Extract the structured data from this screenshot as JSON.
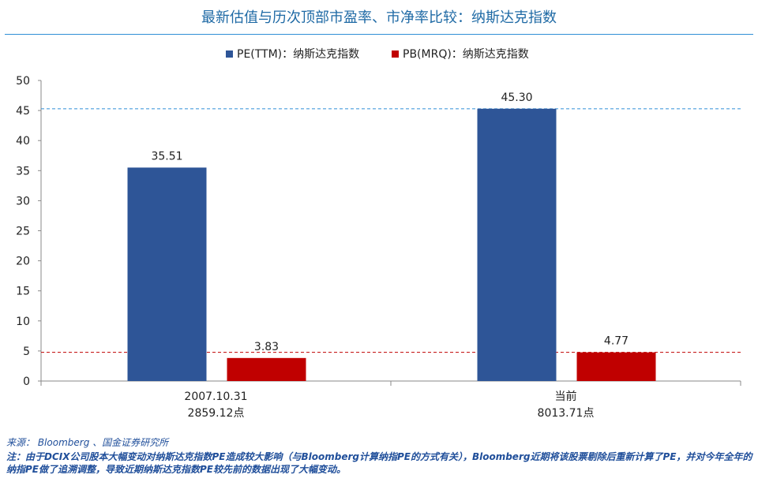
{
  "chart_data": {
    "type": "bar",
    "title": "最新估值与历次顶部市盈率、市净率比较：纳斯达克指数",
    "categories": [
      {
        "line1": "2007.10.31",
        "line2": "2859.12点"
      },
      {
        "line1": "当前",
        "line2": "8013.71点"
      }
    ],
    "series": [
      {
        "name": "PE(TTM)：纳斯达克指数",
        "color": "#2e5597",
        "values": [
          35.51,
          45.3
        ],
        "labels": [
          "35.51",
          "45.30"
        ]
      },
      {
        "name": "PB(MRQ)：纳斯达克指数",
        "color": "#c00000",
        "values": [
          3.83,
          4.77
        ],
        "labels": [
          "3.83",
          "4.77"
        ]
      }
    ],
    "ylim": [
      0,
      50
    ],
    "yticks": [
      "0",
      "5",
      "10",
      "15",
      "20",
      "25",
      "30",
      "35",
      "40",
      "45",
      "50"
    ],
    "reference_lines": [
      {
        "value": 45.3,
        "color": "#2f8fd6"
      },
      {
        "value": 4.77,
        "color": "#c00000"
      }
    ],
    "legend_position": "top-center",
    "grid": false
  },
  "footer": {
    "source": "来源： Bloomberg 、国金证券研究所",
    "note": "注：由于DCIX公司股本大幅变动对纳斯达克指数PE造成较大影响（与Bloomberg计算纳指PE的方式有关），Bloomberg近期将该股票剔除后重新计算了PE，并对今年全年的纳指PE做了追溯调整，导致近期纳斯达克指数PE较先前的数据出现了大幅变动。"
  }
}
